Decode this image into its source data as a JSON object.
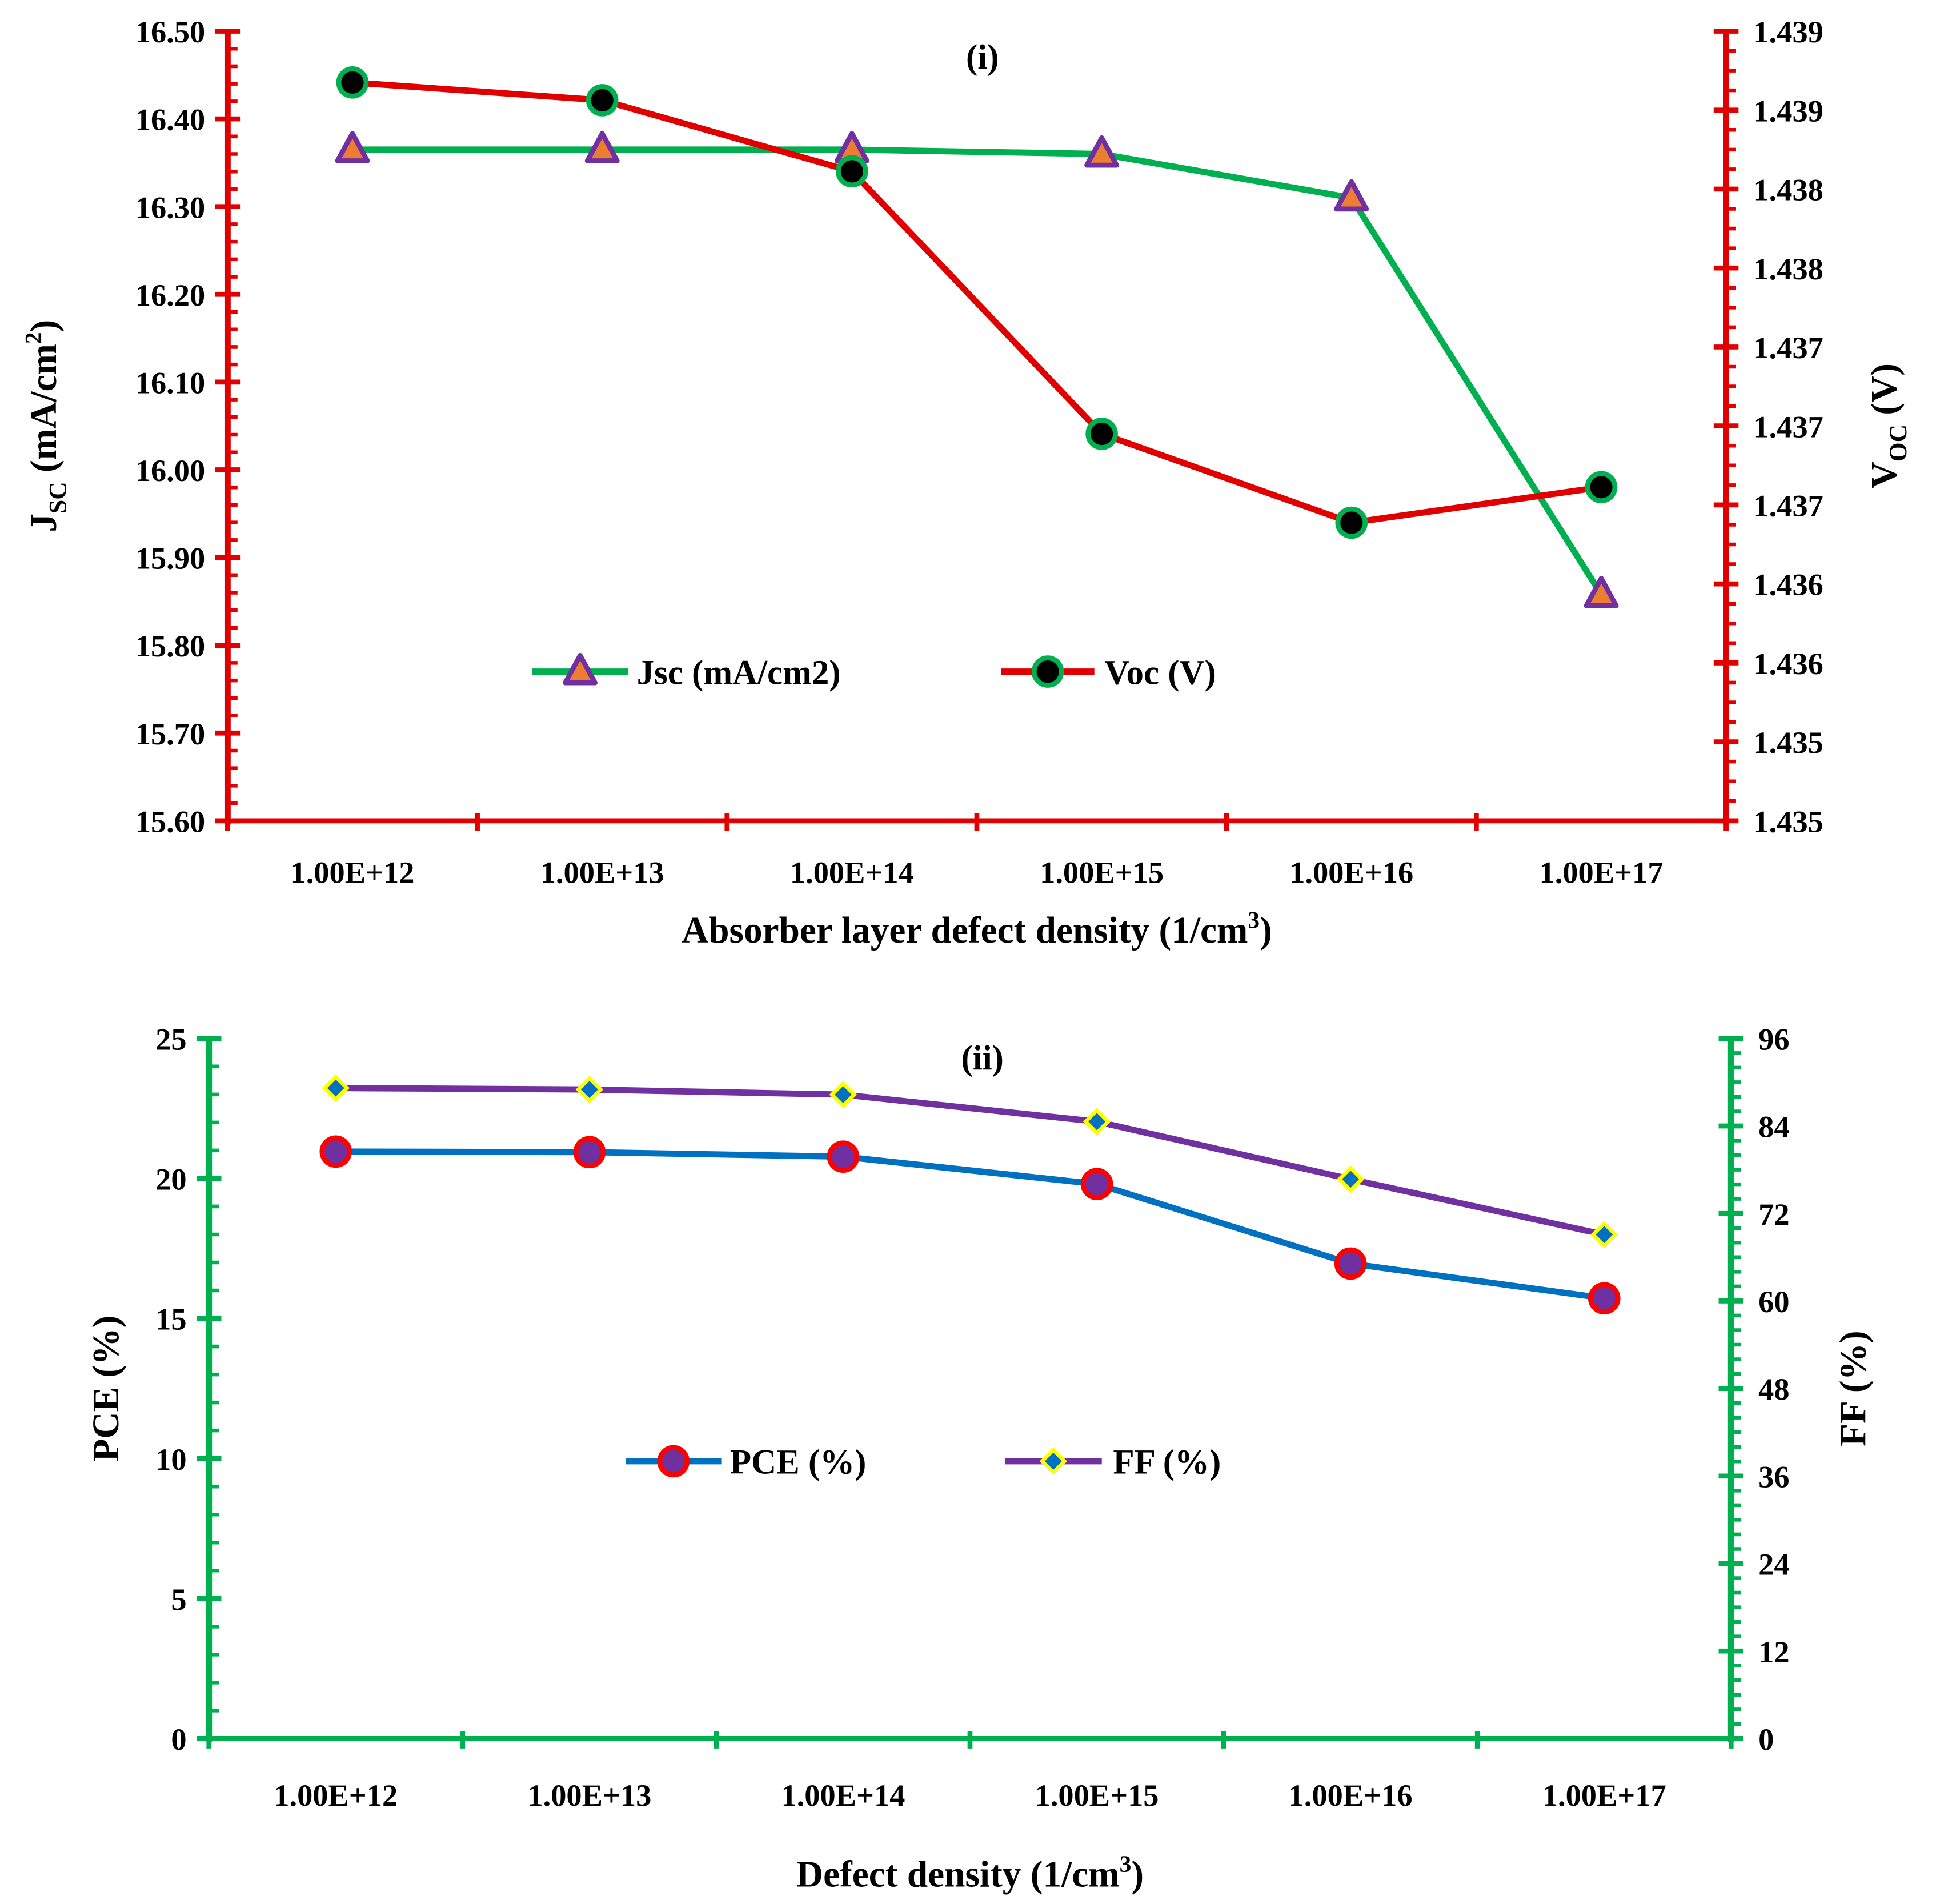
{
  "chart_data": [
    {
      "type": "line",
      "title": "(i)",
      "categories": [
        "1.00E+12",
        "1.00E+13",
        "1.00E+14",
        "1.00E+15",
        "1.00E+16",
        "1.00E+17"
      ],
      "xlabel": {
        "text": "Absorber layer defect density (1/cm",
        "sup": "3",
        "close": ")"
      },
      "ylabel_left": {
        "base": "J",
        "sub": "SC",
        "rest": " (mA/cm",
        "sup": "2",
        "close": ")"
      },
      "ylabel_right": {
        "base": "V",
        "sub": "OC",
        "rest": " (V)"
      },
      "ylim_left": [
        15.6,
        16.5
      ],
      "yticks_left": [
        "15.60",
        "15.70",
        "15.80",
        "15.90",
        "16.00",
        "16.10",
        "16.20",
        "16.30",
        "16.40",
        "16.50"
      ],
      "ylim_right": [
        1.435,
        1.439
      ],
      "yticks_right": [
        "1.435",
        "1.435",
        "1.436",
        "1.436",
        "1.437",
        "1.437",
        "1.437",
        "1.438",
        "1.438",
        "1.439",
        "1.439"
      ],
      "axis_color": "#E00000",
      "legend_position": "center",
      "series": [
        {
          "name": "Jsc (mA/cm2)",
          "axis": "left",
          "values": [
            16.365,
            16.365,
            16.365,
            16.36,
            16.31,
            15.858
          ],
          "line_color": "#00B050",
          "marker": "triangle",
          "marker_fill": "#ED7D31",
          "marker_stroke": "#7030A0"
        },
        {
          "name": "Voc (V)",
          "axis": "right",
          "values": [
            1.43874,
            1.43865,
            1.43829,
            1.43696,
            1.43651,
            1.43669
          ],
          "line_color": "#E00000",
          "marker": "circle",
          "marker_fill": "#000000",
          "marker_stroke": "#00B050"
        }
      ]
    },
    {
      "type": "line",
      "title": "(ii)",
      "categories": [
        "1.00E+12",
        "1.00E+13",
        "1.00E+14",
        "1.00E+15",
        "1.00E+16",
        "1.00E+17"
      ],
      "xlabel": {
        "text": "Defect density (1/cm",
        "sup": "3",
        "close": ")"
      },
      "ylabel_left": {
        "base": "PCE (%)",
        "sub": "",
        "rest": ""
      },
      "ylabel_right": {
        "base": "FF (%)",
        "sub": "",
        "rest": ""
      },
      "ylim_left": [
        0,
        25
      ],
      "yticks_left": [
        "0",
        "5",
        "10",
        "15",
        "20",
        "25"
      ],
      "ylim_right": [
        0,
        96
      ],
      "yticks_right": [
        "0",
        "12",
        "24",
        "36",
        "48",
        "60",
        "72",
        "84",
        "96"
      ],
      "axis_color": "#00B050",
      "legend_position": "center",
      "series": [
        {
          "name": "PCE (%)",
          "axis": "left",
          "values": [
            20.96,
            20.94,
            20.78,
            19.8,
            16.96,
            15.72
          ],
          "line_color": "#0070C0",
          "marker": "circle",
          "marker_fill": "#7030A0",
          "marker_stroke": "#FF0000"
        },
        {
          "name": "FF (%)",
          "axis": "right",
          "values": [
            89.2,
            89.0,
            88.3,
            84.6,
            76.7,
            69.1
          ],
          "line_color": "#7030A0",
          "marker": "diamond",
          "marker_fill": "#0070C0",
          "marker_stroke": "#FFFF00"
        }
      ]
    }
  ]
}
